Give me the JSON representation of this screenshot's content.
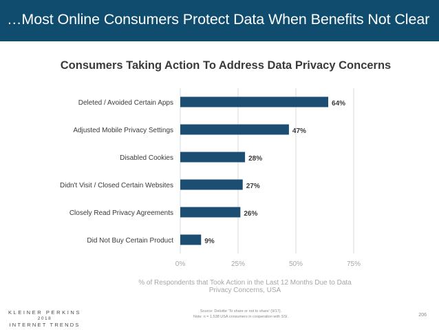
{
  "header": {
    "title": "…Most Online Consumers Protect Data When Benefits Not Clear"
  },
  "colors": {
    "header_bg": "#0f4c6e",
    "bar": "#1c4e73",
    "grid": "#d9d9d9",
    "axis_text": "#a6a6a6",
    "label_text": "#3a3a3a"
  },
  "chart_data": {
    "type": "bar",
    "orientation": "horizontal",
    "title": "Consumers Taking Action To Address Data Privacy Concerns",
    "categories": [
      "Deleted / Avoided Certain Apps",
      "Adjusted Mobile Privacy Settings",
      "Disabled Cookies",
      "Didn't Visit / Closed Certain Websites",
      "Closely Read Privacy Agreements",
      "Did Not Buy Certain Product"
    ],
    "values": [
      64,
      47,
      28,
      27,
      26,
      9
    ],
    "value_labels": [
      "64%",
      "47%",
      "28%",
      "27%",
      "26%",
      "9%"
    ],
    "xlim": [
      0,
      75
    ],
    "xticks": [
      0,
      25,
      50,
      75
    ],
    "xtick_labels": [
      "0%",
      "25%",
      "50%",
      "75%"
    ],
    "xlabel_lines": [
      "% of Respondents that Took Action in the Last 12 Months Due to Data",
      "Privacy Concerns, USA"
    ],
    "ylabel": "",
    "grid": true
  },
  "footer": {
    "logo_line1": "KLEINER PERKINS",
    "logo_line2": "2018",
    "logo_line3": "INTERNET TRENDS",
    "source_line1": "Source: Deloitte 'To share or not to share' (9/17).",
    "source_line2": "Note: n = 1,538 USA consumers in cooperation with SSI.",
    "page_number": "206"
  }
}
